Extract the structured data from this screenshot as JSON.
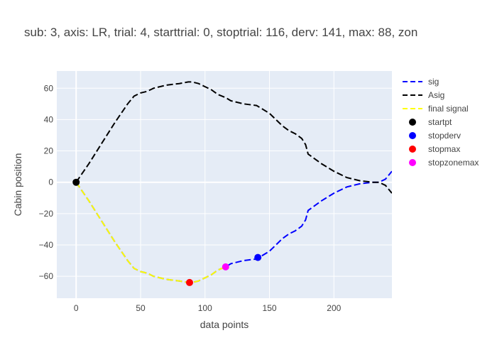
{
  "chart_data": {
    "type": "line",
    "title": "sub: 3, axis: LR, trial: 4, starttrial: 0, stoptrial: 116, derv: 141, max: 88, zon",
    "xlabel": "data points",
    "ylabel": "Cabin position",
    "xlim": [
      -15,
      245
    ],
    "ylim": [
      -74,
      71
    ],
    "x_ticks": [
      0,
      50,
      100,
      150,
      200
    ],
    "y_ticks": [
      -60,
      -40,
      -20,
      0,
      20,
      40,
      60
    ],
    "grid": true,
    "legend_position": "right",
    "series": [
      {
        "name": "sig",
        "style": "dashed-line",
        "color": "#0000ff",
        "x": [
          0,
          10,
          20,
          30,
          40,
          45,
          50,
          55,
          60,
          70,
          80,
          87,
          90,
          95,
          100,
          105,
          110,
          116,
          120,
          130,
          140,
          150,
          155,
          160,
          165,
          170,
          175,
          178,
          180,
          190,
          200,
          210,
          220,
          230,
          235,
          240,
          245
        ],
        "y": [
          0,
          -12,
          -25,
          -38,
          -50,
          -55,
          -57,
          -58,
          -60,
          -62,
          -63,
          -64,
          -64,
          -63,
          -61,
          -59,
          -56,
          -54,
          -52,
          -50,
          -49,
          -44,
          -40,
          -36,
          -33,
          -31,
          -28,
          -24,
          -18,
          -12,
          -7,
          -3,
          -1,
          0,
          0,
          2,
          7
        ]
      },
      {
        "name": "Asig",
        "style": "dashed-line",
        "color": "#000000",
        "x": [
          0,
          10,
          20,
          30,
          40,
          45,
          50,
          55,
          60,
          70,
          80,
          87,
          90,
          95,
          100,
          105,
          110,
          116,
          120,
          130,
          140,
          150,
          155,
          160,
          165,
          170,
          175,
          178,
          180,
          190,
          200,
          210,
          220,
          230,
          235,
          240,
          245
        ],
        "y": [
          0,
          12,
          25,
          38,
          50,
          55,
          57,
          58,
          60,
          62,
          63,
          64,
          64,
          63,
          61,
          59,
          56,
          54,
          52,
          50,
          49,
          44,
          40,
          36,
          33,
          31,
          28,
          24,
          18,
          12,
          7,
          3,
          1,
          0,
          0,
          -2,
          -7
        ]
      },
      {
        "name": "final signal",
        "style": "dashed-line",
        "color": "#ffff00",
        "x": [
          0,
          10,
          20,
          30,
          40,
          45,
          50,
          55,
          60,
          70,
          80,
          87,
          90,
          95,
          100,
          105,
          110,
          116
        ],
        "y": [
          0,
          -12,
          -25,
          -38,
          -50,
          -55,
          -57,
          -58,
          -60,
          -62,
          -63,
          -64,
          -64,
          -63,
          -61,
          -59,
          -56,
          -54
        ]
      },
      {
        "name": "startpt",
        "style": "marker",
        "color": "#000000",
        "x": [
          0
        ],
        "y": [
          0
        ]
      },
      {
        "name": "stopderv",
        "style": "marker",
        "color": "#0000ff",
        "x": [
          141
        ],
        "y": [
          -48
        ]
      },
      {
        "name": "stopmax",
        "style": "marker",
        "color": "#ff0000",
        "x": [
          88
        ],
        "y": [
          -64
        ]
      },
      {
        "name": "stopzonemax",
        "style": "marker",
        "color": "#ff00ff",
        "x": [
          116
        ],
        "y": [
          -54
        ]
      }
    ]
  },
  "colors": {
    "plot_bg": "#e5ecf6",
    "grid": "#ffffff",
    "text": "#444444"
  }
}
